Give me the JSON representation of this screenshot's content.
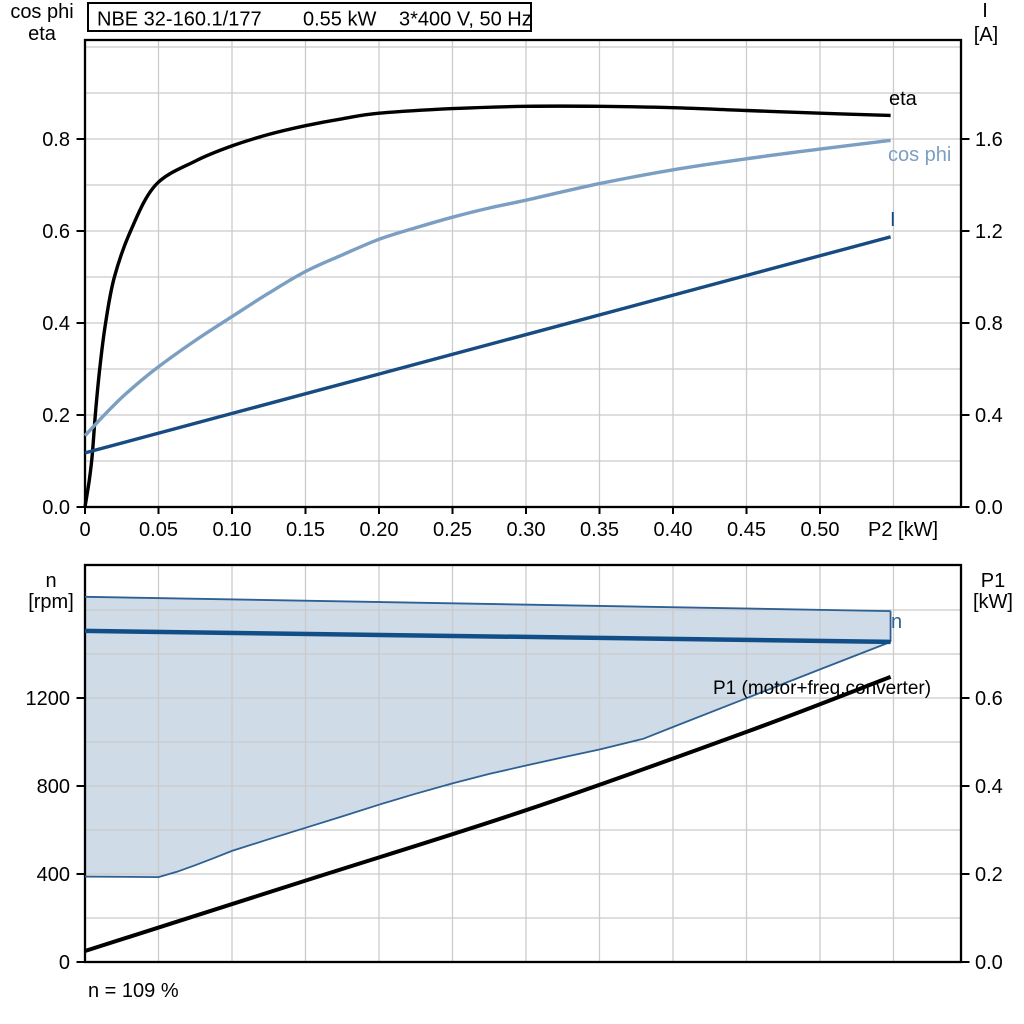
{
  "title_box": {
    "model": "NBE 32-160.1/177",
    "power": "0.55 kW",
    "supply": "3*400 V, 50 Hz"
  },
  "annotations": {
    "speed_note": "n = 109 %"
  },
  "colors": {
    "eta_curve": "#000000",
    "cos_phi_curve": "#7b9fc2",
    "current_curve": "#174b82",
    "n_curve": "#114e87",
    "p1_curve": "#000000",
    "area_fill": "#cfdbe7",
    "area_edge": "#2e6093",
    "gridline": "#cbcbcb"
  },
  "chart_data": [
    {
      "type": "line",
      "name": "motor-efficiency-current-chart",
      "x_axis": {
        "label": "P2 [kW]",
        "tick_values": [
          0,
          0.05,
          0.1,
          0.15,
          0.2,
          0.25,
          0.3,
          0.35,
          0.4,
          0.45,
          0.5
        ],
        "tick_labels": [
          "0",
          "0.05",
          "0.10",
          "0.15",
          "0.20",
          "0.25",
          "0.30",
          "0.35",
          "0.40",
          "0.45",
          "0.50"
        ],
        "range": [
          0,
          0.596
        ],
        "grid_values": [
          0.05,
          0.1,
          0.15,
          0.2,
          0.25,
          0.3,
          0.35,
          0.4,
          0.45,
          0.5,
          0.55
        ]
      },
      "y_axis_left": {
        "title": [
          "cos phi",
          "eta"
        ],
        "tick_values": [
          0.0,
          0.2,
          0.4,
          0.6,
          0.8
        ],
        "tick_labels": [
          "0.0",
          "0.2",
          "0.4",
          "0.6",
          "0.8"
        ],
        "range": [
          0,
          1.015
        ],
        "grid_values": [
          0.1,
          0.2,
          0.3,
          0.4,
          0.5,
          0.6,
          0.7,
          0.8,
          0.9,
          1.0
        ]
      },
      "y_axis_right": {
        "title": [
          "I",
          "[A]"
        ],
        "tick_values": [
          0.0,
          0.4,
          0.8,
          1.2,
          1.6
        ],
        "tick_labels": [
          "0.0",
          "0.4",
          "0.8",
          "1.2",
          "1.6"
        ],
        "range": [
          0,
          2.03
        ]
      },
      "series": [
        {
          "name": "eta",
          "axis": "left",
          "color": "#000000",
          "points": [
            [
              0,
              0
            ],
            [
              0.003,
              0.06
            ],
            [
              0.005,
              0.115
            ],
            [
              0.007,
              0.2
            ],
            [
              0.01,
              0.3
            ],
            [
              0.014,
              0.4
            ],
            [
              0.02,
              0.5
            ],
            [
              0.031,
              0.6
            ],
            [
              0.048,
              0.7
            ],
            [
              0.075,
              0.752
            ],
            [
              0.1,
              0.785
            ],
            [
              0.125,
              0.81
            ],
            [
              0.15,
              0.829
            ],
            [
              0.175,
              0.844
            ],
            [
              0.2,
              0.856
            ],
            [
              0.25,
              0.866
            ],
            [
              0.3,
              0.871
            ],
            [
              0.35,
              0.871
            ],
            [
              0.4,
              0.868
            ],
            [
              0.45,
              0.862
            ],
            [
              0.5,
              0.856
            ],
            [
              0.548,
              0.851
            ]
          ]
        },
        {
          "name": "cos phi",
          "axis": "left",
          "color": "#7b9fc2",
          "points": [
            [
              0,
              0.155
            ],
            [
              0.0125,
              0.198
            ],
            [
              0.025,
              0.238
            ],
            [
              0.0375,
              0.273
            ],
            [
              0.05,
              0.305
            ],
            [
              0.075,
              0.362
            ],
            [
              0.1,
              0.414
            ],
            [
              0.125,
              0.465
            ],
            [
              0.15,
              0.512
            ],
            [
              0.175,
              0.548
            ],
            [
              0.2,
              0.582
            ],
            [
              0.225,
              0.607
            ],
            [
              0.25,
              0.63
            ],
            [
              0.275,
              0.65
            ],
            [
              0.3,
              0.667
            ],
            [
              0.35,
              0.703
            ],
            [
              0.4,
              0.733
            ],
            [
              0.45,
              0.757
            ],
            [
              0.5,
              0.778
            ],
            [
              0.548,
              0.797
            ]
          ]
        },
        {
          "name": "I",
          "axis": "right",
          "color": "#174b82",
          "points": [
            [
              0,
              0.235
            ],
            [
              0.548,
              1.175
            ]
          ]
        }
      ]
    },
    {
      "type": "line-area",
      "name": "speed-power-chart",
      "x_axis": {
        "label": "",
        "grid_values": [
          0.05,
          0.1,
          0.15,
          0.2,
          0.25,
          0.3,
          0.35,
          0.4,
          0.45,
          0.5,
          0.55
        ],
        "range": [
          0,
          0.596
        ]
      },
      "y_axis_left": {
        "title": [
          "n",
          "[rpm]"
        ],
        "tick_values": [
          0,
          400,
          800,
          1200
        ],
        "tick_labels": [
          "0",
          "400",
          "800",
          "1200"
        ],
        "range": [
          0,
          1805
        ],
        "grid_values": [
          200,
          400,
          600,
          800,
          1000,
          1200,
          1400,
          1600
        ]
      },
      "y_axis_right": {
        "title": [
          "P1",
          "[kW]"
        ],
        "tick_values": [
          0.0,
          0.2,
          0.4,
          0.6
        ],
        "tick_labels": [
          "0.0",
          "0.2",
          "0.4",
          "0.6"
        ],
        "range": [
          0,
          0.9
        ]
      },
      "area": {
        "name": "speed-control-range",
        "fill": "#cfdbe7",
        "edge_color": "#2e6093",
        "upper_rpm": [
          [
            0,
            1660
          ],
          [
            0.548,
            1595
          ]
        ],
        "lower_rpm": [
          [
            0,
            388
          ],
          [
            0.05,
            386
          ],
          [
            0.0625,
            410
          ],
          [
            0.075,
            440
          ],
          [
            0.0875,
            472
          ],
          [
            0.1,
            505
          ],
          [
            0.125,
            558
          ],
          [
            0.15,
            610
          ],
          [
            0.175,
            662
          ],
          [
            0.2,
            715
          ],
          [
            0.225,
            765
          ],
          [
            0.25,
            812
          ],
          [
            0.275,
            855
          ],
          [
            0.3,
            893
          ],
          [
            0.325,
            930
          ],
          [
            0.35,
            966
          ],
          [
            0.38,
            1015
          ],
          [
            0.4,
            1068
          ],
          [
            0.45,
            1199
          ],
          [
            0.5,
            1330
          ],
          [
            0.548,
            1455
          ]
        ]
      },
      "series": [
        {
          "name": "n",
          "axis": "left",
          "color": "#114e87",
          "points": [
            [
              0,
              1505
            ],
            [
              0.548,
              1455
            ]
          ]
        },
        {
          "name": "P1 (motor+freq.converter)",
          "axis": "right",
          "color": "#000000",
          "points": [
            [
              0,
              0.025
            ],
            [
              0.15,
              0.185
            ],
            [
              0.3,
              0.345
            ],
            [
              0.45,
              0.523
            ],
            [
              0.548,
              0.648
            ]
          ]
        }
      ]
    }
  ]
}
